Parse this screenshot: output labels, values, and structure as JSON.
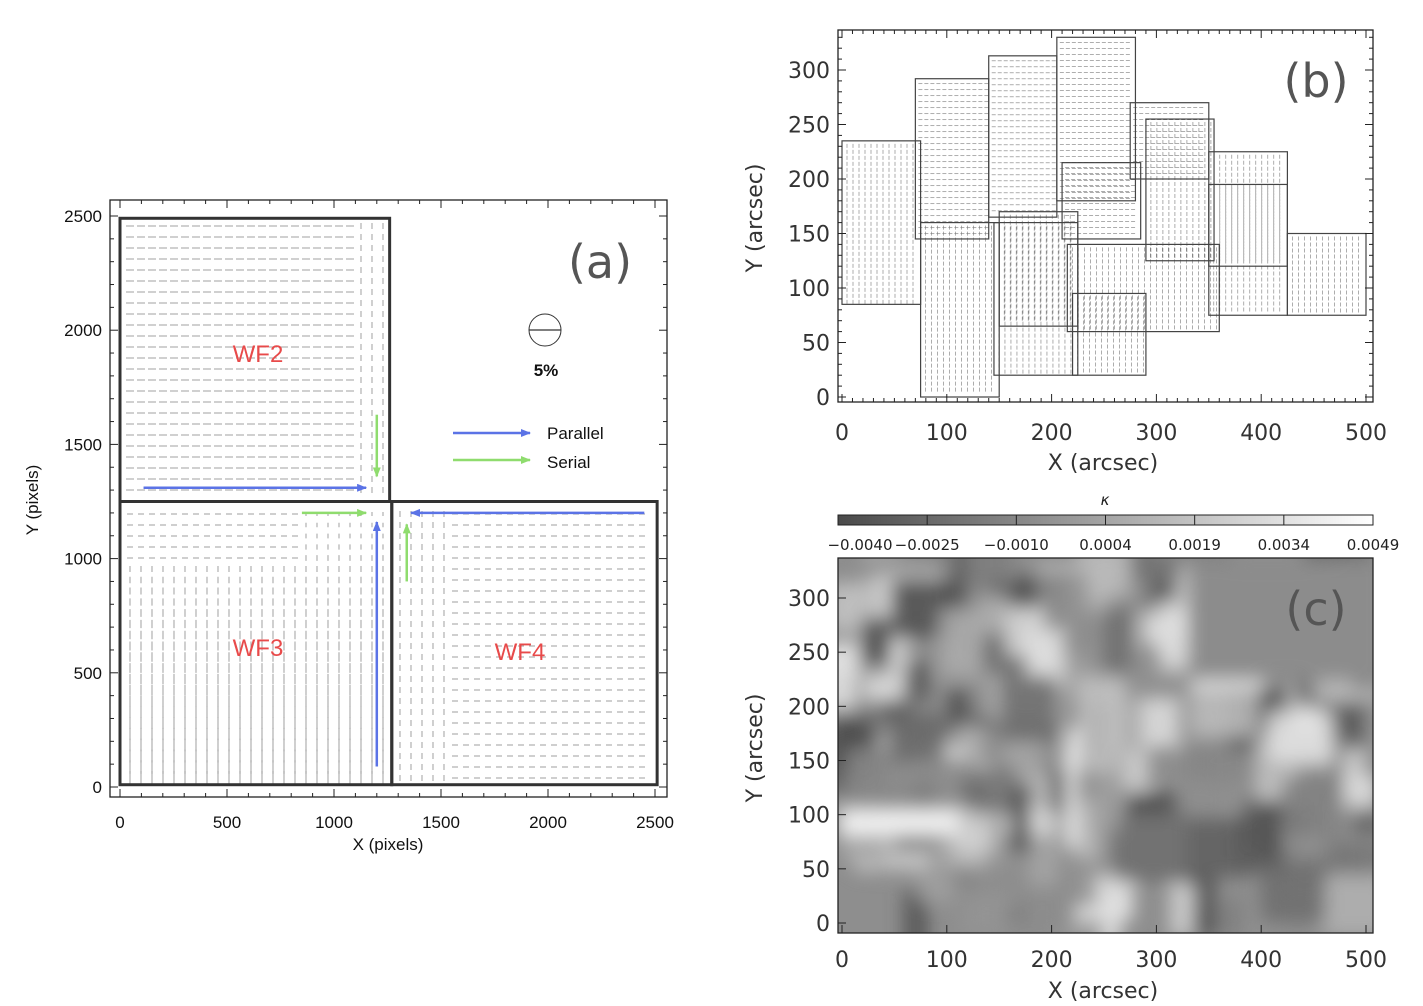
{
  "chart_data": [
    {
      "id": "a",
      "type": "scatter",
      "panel_label": "(a)",
      "xlabel": "X (pixels)",
      "ylabel": "Y (pixels)",
      "xlim": [
        0,
        2500
      ],
      "ylim": [
        0,
        2500
      ],
      "xticks": [
        0,
        500,
        1000,
        1500,
        2000,
        2500
      ],
      "yticks": [
        0,
        500,
        1000,
        1500,
        2000,
        2500
      ],
      "chip_labels": [
        "WF2",
        "WF3",
        "WF4"
      ],
      "chips": [
        {
          "name": "WF2",
          "x": [
            0,
            1260
          ],
          "y": [
            1250,
            2490
          ]
        },
        {
          "name": "WF3",
          "x": [
            0,
            1270
          ],
          "y": [
            10,
            1250
          ]
        },
        {
          "name": "WF4",
          "x": [
            1270,
            2510
          ],
          "y": [
            10,
            1250
          ]
        }
      ],
      "scale_label": "5%",
      "legend": {
        "parallel": "Parallel",
        "serial": "Serial"
      },
      "colors": {
        "parallel": "#5b73e6",
        "serial": "#8fdc6e",
        "chip_label": "#e84a4a"
      },
      "arrows": [
        {
          "kind": "parallel",
          "from": [
            110,
            1310
          ],
          "to": [
            1150,
            1310
          ]
        },
        {
          "kind": "parallel",
          "from": [
            2450,
            1200
          ],
          "to": [
            1360,
            1200
          ]
        },
        {
          "kind": "parallel",
          "from": [
            1200,
            90
          ],
          "to": [
            1200,
            1160
          ]
        },
        {
          "kind": "serial",
          "from": [
            1200,
            1630
          ],
          "to": [
            1200,
            1360
          ]
        },
        {
          "kind": "serial",
          "from": [
            850,
            1200
          ],
          "to": [
            1150,
            1200
          ]
        },
        {
          "kind": "serial",
          "from": [
            1340,
            900
          ],
          "to": [
            1340,
            1150
          ]
        }
      ]
    },
    {
      "id": "b",
      "type": "scatter",
      "panel_label": "(b)",
      "xlabel": "X (arcsec)",
      "ylabel": "Y (arcsec)",
      "xlim": [
        0,
        510
      ],
      "ylim": [
        0,
        335
      ],
      "xticks": [
        0,
        100,
        200,
        300,
        400,
        500
      ],
      "yticks": [
        0,
        50,
        100,
        150,
        200,
        250,
        300
      ],
      "fields": [
        [
          0,
          85,
          75,
          235
        ],
        [
          70,
          145,
          140,
          292
        ],
        [
          140,
          165,
          205,
          313
        ],
        [
          205,
          180,
          280,
          330
        ],
        [
          275,
          200,
          350,
          270
        ],
        [
          290,
          125,
          355,
          255
        ],
        [
          350,
          120,
          425,
          225
        ],
        [
          350,
          75,
          425,
          195
        ],
        [
          425,
          75,
          500,
          150
        ],
        [
          75,
          0,
          150,
          160
        ],
        [
          145,
          20,
          225,
          160
        ],
        [
          150,
          65,
          225,
          170
        ],
        [
          220,
          20,
          290,
          95
        ],
        [
          215,
          60,
          360,
          140
        ],
        [
          210,
          145,
          285,
          215
        ]
      ]
    },
    {
      "id": "c",
      "type": "heatmap",
      "panel_label": "(c)",
      "xlabel": "X (arcsec)",
      "ylabel": "Y (arcsec)",
      "xlim": [
        0,
        510
      ],
      "ylim": [
        0,
        335
      ],
      "xticks": [
        0,
        100,
        200,
        300,
        400,
        500
      ],
      "yticks": [
        0,
        50,
        100,
        150,
        200,
        250,
        300
      ],
      "colorbar": {
        "label": "κ",
        "min": -0.004,
        "max": 0.0049,
        "ticks": [
          "−0.0040",
          "−0.0025",
          "−0.0010",
          "0.0004",
          "0.0019",
          "0.0034",
          "0.0049"
        ]
      }
    }
  ]
}
